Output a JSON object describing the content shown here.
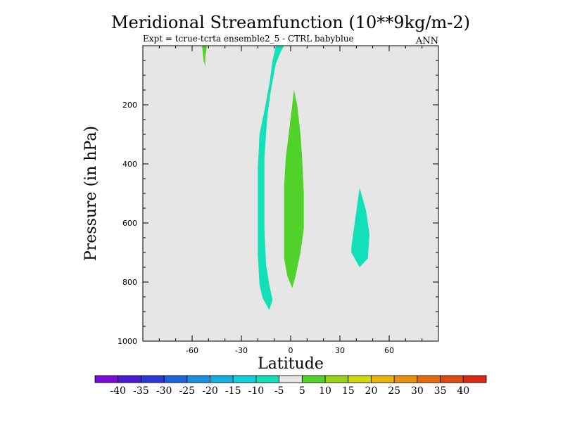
{
  "chart_data": {
    "type": "contour",
    "title": "Meridional Streamfunction (10**9kg/m-2)",
    "subtitle": "Expt = tcrue-tcrta   ensemble2_5 - CTRL babyblue",
    "season_label": "ANN",
    "xlabel": "Latitude",
    "ylabel": "Pressure (in hPa)",
    "xlim": [
      -90,
      90
    ],
    "ylim": [
      1000,
      0
    ],
    "x_ticks": [
      -60,
      -30,
      0,
      30,
      60
    ],
    "x_tick_labels": [
      "-60",
      "-30",
      "0",
      "30",
      "60"
    ],
    "y_ticks": [
      200,
      400,
      600,
      800,
      1000
    ],
    "y_tick_labels": [
      "200",
      "400",
      "600",
      "800",
      "1000"
    ],
    "background_level_color": "#e6e6e6",
    "colorbar": {
      "levels": [
        "-40",
        "-35",
        "-30",
        "-25",
        "-20",
        "-15",
        "-10",
        "-5",
        "5",
        "10",
        "15",
        "20",
        "25",
        "30",
        "35",
        "40"
      ],
      "colors": [
        "#7a0ad8",
        "#4b1ad4",
        "#2a38d8",
        "#1c64dd",
        "#1a8ee0",
        "#12b0e0",
        "#10cfd8",
        "#12e0b8",
        "#e6e6e6",
        "#50d22a",
        "#98d214",
        "#d0d80a",
        "#e8b40a",
        "#e89010",
        "#e46a10",
        "#dc4a10",
        "#d82a10"
      ]
    },
    "regions": [
      {
        "name": "negative-cell-upper-south",
        "level": "-10 to -5",
        "color": "#12e0b8",
        "points": [
          [
            -9,
            0
          ],
          [
            -4,
            0
          ],
          [
            -6,
            20
          ],
          [
            -9,
            60
          ],
          [
            -12,
            150
          ],
          [
            -14,
            230
          ],
          [
            -15,
            300
          ],
          [
            -16,
            380
          ],
          [
            -16,
            500
          ],
          [
            -16,
            620
          ],
          [
            -15,
            740
          ],
          [
            -13,
            810
          ],
          [
            -11,
            860
          ],
          [
            -13,
            895
          ],
          [
            -17,
            855
          ],
          [
            -19,
            810
          ],
          [
            -20,
            700
          ],
          [
            -20,
            560
          ],
          [
            -20,
            420
          ],
          [
            -19,
            300
          ],
          [
            -16,
            220
          ],
          [
            -13,
            130
          ],
          [
            -11,
            50
          ]
        ]
      },
      {
        "name": "negative-cell-midlevel-north",
        "level": "-10 to -5",
        "color": "#12e0b8",
        "points": [
          [
            42,
            480
          ],
          [
            46,
            560
          ],
          [
            48,
            640
          ],
          [
            47,
            720
          ],
          [
            42,
            750
          ],
          [
            37,
            700
          ],
          [
            37,
            680
          ],
          [
            39,
            600
          ]
        ]
      },
      {
        "name": "positive-cell-tropics",
        "level": "5 to 10",
        "color": "#50d22a",
        "points": [
          [
            2,
            150
          ],
          [
            4,
            200
          ],
          [
            6,
            300
          ],
          [
            7,
            380
          ],
          [
            8,
            500
          ],
          [
            8,
            620
          ],
          [
            6,
            700
          ],
          [
            3,
            780
          ],
          [
            1,
            820
          ],
          [
            -2,
            780
          ],
          [
            -4,
            720
          ],
          [
            -4,
            600
          ],
          [
            -4,
            480
          ],
          [
            -3,
            380
          ],
          [
            -1,
            290
          ],
          [
            1,
            200
          ]
        ]
      },
      {
        "name": "positive-cell-southern-top",
        "level": "5 to 10",
        "color": "#50d22a",
        "points": [
          [
            -54,
            0
          ],
          [
            -51,
            0
          ],
          [
            -52,
            40
          ],
          [
            -52,
            70
          ],
          [
            -53,
            50
          ]
        ]
      }
    ]
  }
}
